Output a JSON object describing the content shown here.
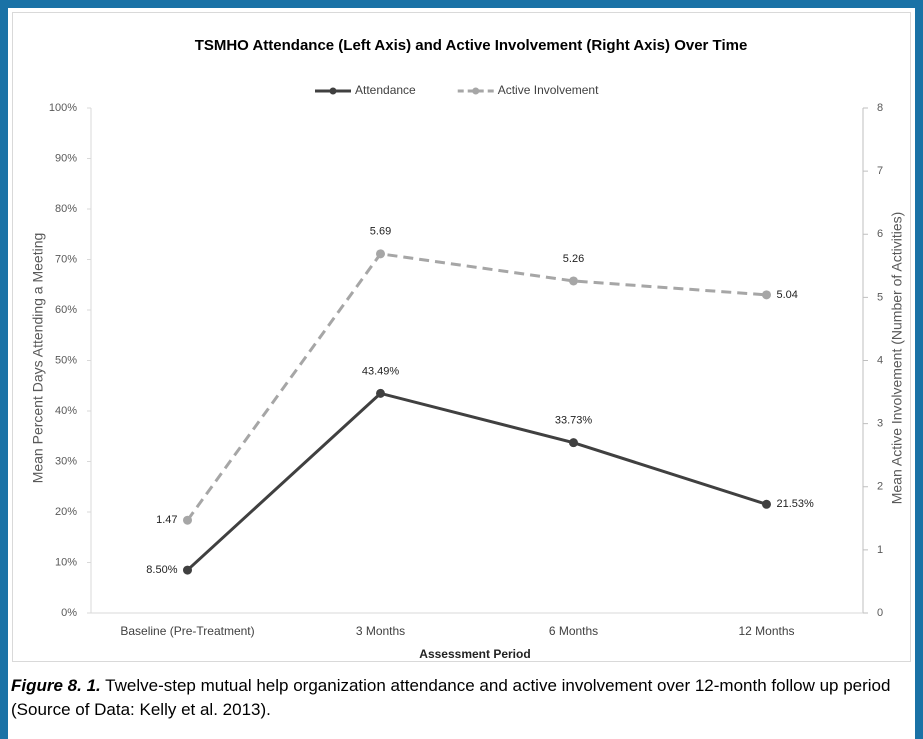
{
  "chart_data": {
    "type": "line",
    "title": "TSMHO Attendance (Left Axis) and Active Involvement (Right Axis) Over Time",
    "categories": [
      "Baseline (Pre-Treatment)",
      "3 Months",
      "6 Months",
      "12 Months"
    ],
    "series": [
      {
        "name": "Attendance",
        "color": "#404040",
        "line_style": "solid",
        "values": [
          8.5,
          43.49,
          33.73,
          21.53
        ],
        "value_labels": [
          "8.50%",
          "43.49%",
          "33.73%",
          "21.53%"
        ]
      },
      {
        "name": "Active Involvement",
        "color": "#a6a6a6",
        "line_style": "dashed",
        "axis": "y2",
        "values": [
          1.47,
          5.69,
          5.26,
          5.04
        ]
      }
    ],
    "xlabel": "Assessment Period",
    "ylabel": "Mean Percent Days Attending a Meeting",
    "y2label": "Mean Active Involvement (Number of Activities)",
    "ylim": [
      0,
      100
    ],
    "yticks": [
      {
        "value": 0,
        "label": "0%"
      },
      {
        "value": 10,
        "label": "10%"
      },
      {
        "value": 20,
        "label": "20%"
      },
      {
        "value": 30,
        "label": "30%"
      },
      {
        "value": 40,
        "label": "40%"
      },
      {
        "value": 50,
        "label": "50%"
      },
      {
        "value": 60,
        "label": "60%"
      },
      {
        "value": 70,
        "label": "70%"
      },
      {
        "value": 80,
        "label": "80%"
      },
      {
        "value": 90,
        "label": "90%"
      },
      {
        "value": 100,
        "label": "100%"
      }
    ],
    "y2lim": [
      0,
      8
    ],
    "y2ticks": [
      0,
      1,
      2,
      3,
      4,
      5,
      6,
      7,
      8
    ],
    "legend": "top"
  },
  "caption": {
    "label": "Figure 8. 1.",
    "text": "Twelve-step mutual help organization attendance and active involvement over 12-month follow up period (Source of Data: Kelly et al. 2013)."
  }
}
